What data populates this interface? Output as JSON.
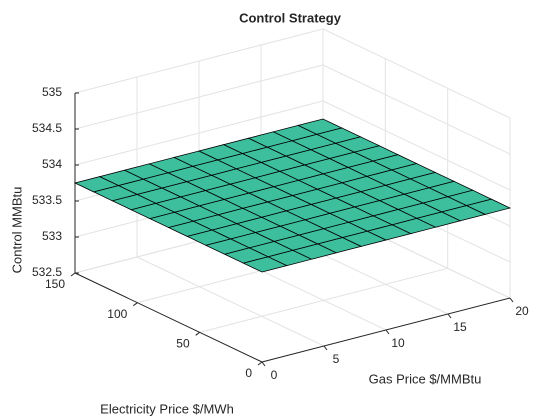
{
  "chart_data": {
    "type": "surface",
    "title": "Control Strategy",
    "xlabel": "Gas Price $/MMBtu",
    "ylabel": "Electricity Price $/MWh",
    "zlabel": "Control MMBtu",
    "x": [
      0,
      2,
      4,
      6,
      8,
      10,
      12,
      14,
      16,
      18,
      20
    ],
    "y": [
      0,
      15,
      30,
      45,
      60,
      75,
      90,
      105,
      120,
      135,
      150
    ],
    "z": [
      [
        533.75,
        533.75,
        533.75,
        533.75,
        533.75,
        533.75,
        533.75,
        533.75,
        533.75,
        533.75,
        533.75
      ],
      [
        533.75,
        533.75,
        533.75,
        533.75,
        533.75,
        533.75,
        533.75,
        533.75,
        533.75,
        533.75,
        533.75
      ],
      [
        533.75,
        533.75,
        533.75,
        533.75,
        533.75,
        533.75,
        533.75,
        533.75,
        533.75,
        533.75,
        533.75
      ],
      [
        533.75,
        533.75,
        533.75,
        533.75,
        533.75,
        533.75,
        533.75,
        533.75,
        533.75,
        533.75,
        533.75
      ],
      [
        533.75,
        533.75,
        533.75,
        533.75,
        533.75,
        533.75,
        533.75,
        533.75,
        533.75,
        533.75,
        533.75
      ],
      [
        533.75,
        533.75,
        533.75,
        533.75,
        533.75,
        533.75,
        533.75,
        533.75,
        533.75,
        533.75,
        533.75
      ],
      [
        533.75,
        533.75,
        533.75,
        533.75,
        533.75,
        533.75,
        533.75,
        533.75,
        533.75,
        533.75,
        533.75
      ],
      [
        533.75,
        533.75,
        533.75,
        533.75,
        533.75,
        533.75,
        533.75,
        533.75,
        533.75,
        533.75,
        533.75
      ],
      [
        533.75,
        533.75,
        533.75,
        533.75,
        533.75,
        533.75,
        533.75,
        533.75,
        533.75,
        533.75,
        533.75
      ],
      [
        533.75,
        533.75,
        533.75,
        533.75,
        533.75,
        533.75,
        533.75,
        533.75,
        533.75,
        533.75,
        533.75
      ],
      [
        533.75,
        533.75,
        533.75,
        533.75,
        533.75,
        533.75,
        533.75,
        533.75,
        533.75,
        533.75,
        533.75
      ]
    ],
    "color": "#3dbf9e",
    "xlim": [
      0,
      20
    ],
    "xticks": [
      0,
      5,
      10,
      15,
      20
    ],
    "ylim": [
      0,
      150
    ],
    "yticks": [
      0,
      50,
      100,
      150
    ],
    "zlim": [
      532.5,
      535
    ],
    "zticks": [
      532.5,
      533,
      533.5,
      534,
      534.5,
      535
    ],
    "grid": true
  }
}
